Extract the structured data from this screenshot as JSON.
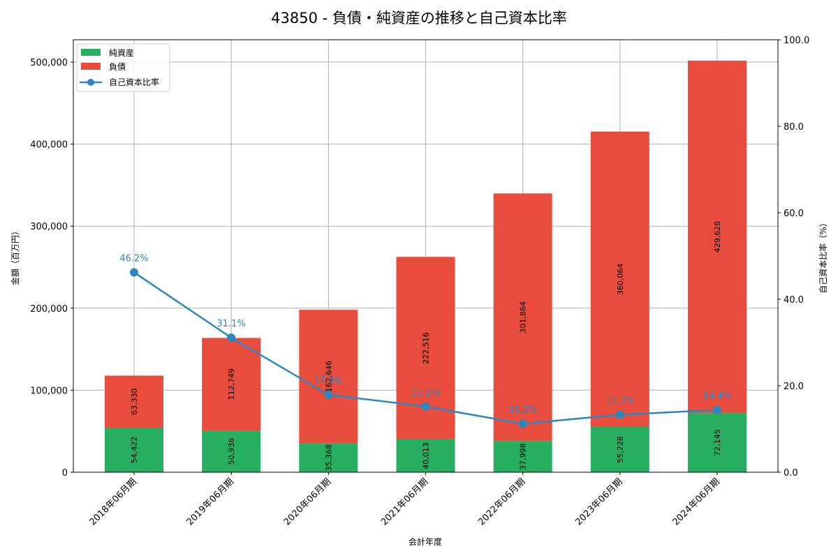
{
  "chart_data": {
    "type": "bar",
    "stacked": true,
    "title": "43850 - 負債・純資産の推移と自己資本比率",
    "xlabel": "会計年度",
    "ylabel": "金額（百万円）",
    "y2label": "自己資本比率（%）",
    "categories": [
      "2018年06月期",
      "2019年06月期",
      "2020年06月期",
      "2021年06月期",
      "2022年06月期",
      "2023年06月期",
      "2024年06月期"
    ],
    "series": [
      {
        "name": "純資産",
        "type": "bar",
        "axis": "left",
        "color": "#27ae60",
        "values": [
          54422,
          50936,
          35368,
          40013,
          37998,
          55228,
          72145
        ]
      },
      {
        "name": "負債",
        "type": "bar",
        "axis": "left",
        "color": "#e74c3c",
        "values": [
          63330,
          112749,
          162646,
          222516,
          301864,
          360064,
          429628
        ]
      },
      {
        "name": "自己資本比率",
        "type": "line",
        "axis": "right",
        "color": "#2e86c1",
        "marker": "circle",
        "values": [
          46.2,
          31.1,
          17.9,
          15.2,
          11.2,
          13.3,
          14.4
        ]
      }
    ],
    "ylim": [
      0,
      527000
    ],
    "y2lim": [
      0,
      100
    ],
    "yticks": [
      0,
      100000,
      200000,
      300000,
      400000,
      500000
    ],
    "ytick_labels": [
      "0",
      "100,000",
      "200,000",
      "300,000",
      "400,000",
      "500,000"
    ],
    "y2ticks": [
      0,
      20,
      40,
      60,
      80,
      100
    ],
    "y2tick_labels": [
      "0.0",
      "20.0",
      "40.0",
      "60.0",
      "80.0",
      "100.0"
    ],
    "grid": true,
    "legend_position": "upper left"
  },
  "legend": {
    "items": [
      {
        "label": "純資産",
        "color": "#27ae60",
        "kind": "patch"
      },
      {
        "label": "負債",
        "color": "#e74c3c",
        "kind": "patch"
      },
      {
        "label": "自己資本比率",
        "color": "#2e86c1",
        "kind": "line-marker"
      }
    ]
  }
}
